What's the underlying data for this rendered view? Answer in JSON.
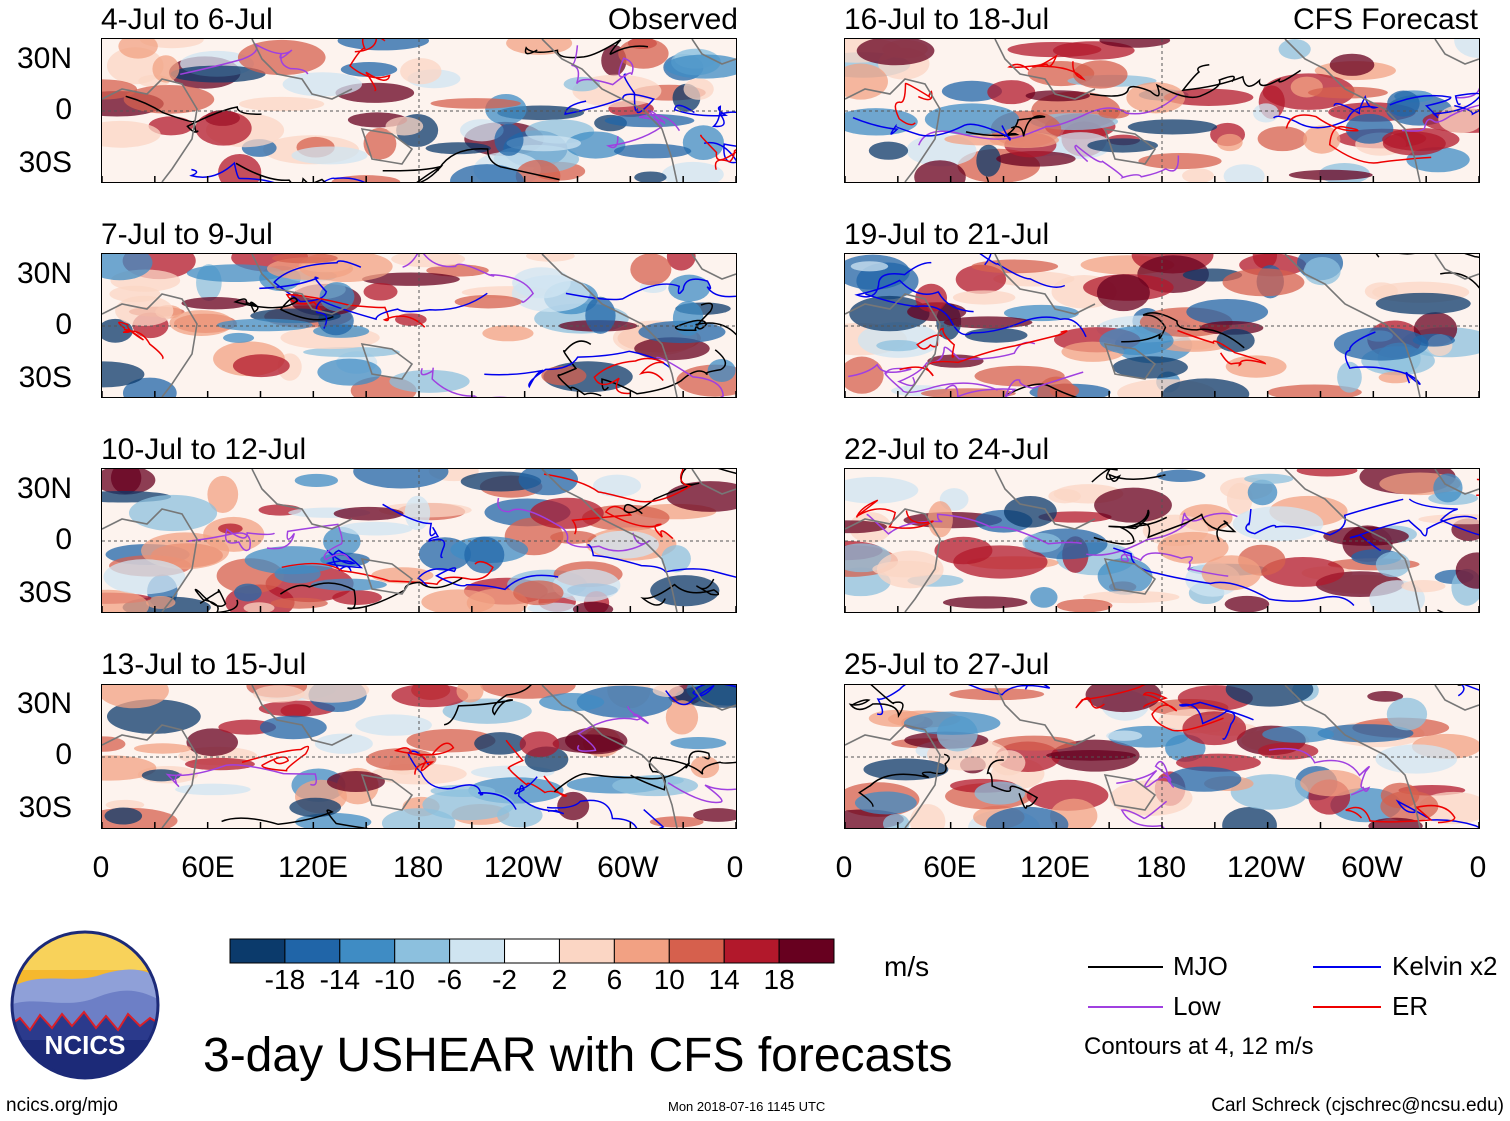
{
  "main_title": "3-day USHEAR with CFS forecasts",
  "site_url": "ncics.org/mjo",
  "timestamp": "Mon 2018-07-16 1145 UTC",
  "author": "Carl Schreck (cjschrec@ncsu.edu)",
  "logo_text": "NCICS",
  "units": "m/s",
  "lat_ticks": [
    "30N",
    "0",
    "30S"
  ],
  "lon_ticks": [
    "0",
    "60E",
    "120E",
    "180",
    "120W",
    "60W",
    "0"
  ],
  "panels": [
    {
      "period": "4-Jul to 6-Jul",
      "label": "Observed",
      "seed": 3
    },
    {
      "period": "7-Jul to 9-Jul",
      "label": "",
      "seed": 7
    },
    {
      "period": "10-Jul to 12-Jul",
      "label": "",
      "seed": 11
    },
    {
      "period": "13-Jul to 15-Jul",
      "label": "",
      "seed": 17
    },
    {
      "period": "16-Jul to 18-Jul",
      "label": "CFS Forecast",
      "seed": 23
    },
    {
      "period": "19-Jul to 21-Jul",
      "label": "",
      "seed": 29
    },
    {
      "period": "22-Jul to 24-Jul",
      "label": "",
      "seed": 31
    },
    {
      "period": "25-Jul to 27-Jul",
      "label": "",
      "seed": 37
    }
  ],
  "colorbar": {
    "labels": [
      "-18",
      "-14",
      "-10",
      "-6",
      "-2",
      "2",
      "6",
      "10",
      "14",
      "18"
    ],
    "colors": [
      "#0b3a6b",
      "#2065a8",
      "#3f8cc4",
      "#8cc0de",
      "#cfe4f1",
      "#ffffff",
      "#fbd6c4",
      "#f2a183",
      "#d6604d",
      "#b2182b",
      "#67001f"
    ]
  },
  "legend": {
    "items": [
      {
        "name": "MJO",
        "color": "#000000"
      },
      {
        "name": "Kelvin x2",
        "color": "#0000ee"
      },
      {
        "name": "Low",
        "color": "#a040e0"
      },
      {
        "name": "ER",
        "color": "#ee0000"
      }
    ],
    "note": "Contours at 4, 12 m/s"
  }
}
